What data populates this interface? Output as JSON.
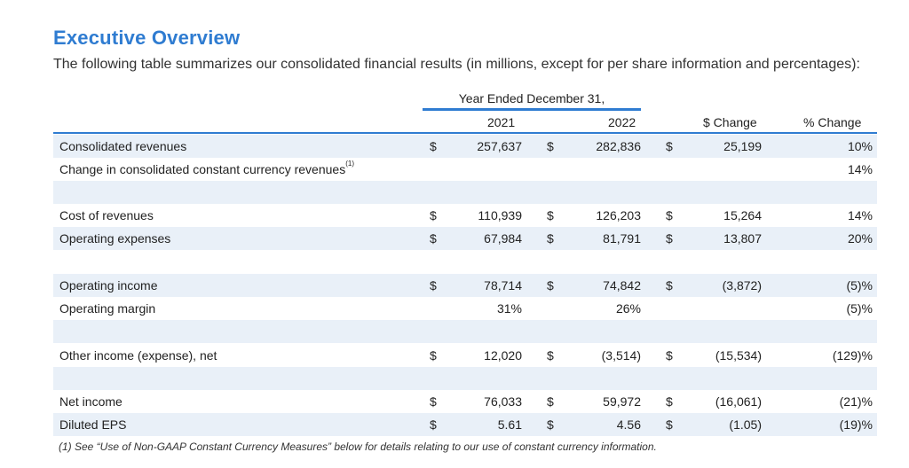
{
  "title": "Executive Overview",
  "intro": "The following table summarizes our consolidated financial results (in millions, except for per share information and percentages):",
  "header": {
    "period": "Year Ended December 31,",
    "col_2021": "2021",
    "col_2022": "2022",
    "col_change_dollar": "$ Change",
    "col_change_pct": "% Change"
  },
  "rows": [
    {
      "label": "Consolidated revenues",
      "d1": "$",
      "v2021": "257,637",
      "d2": "$",
      "v2022": "282,836",
      "d3": "$",
      "change": "25,199",
      "pct": "10%"
    },
    {
      "label": "Change in consolidated constant currency revenues",
      "sup": "(1)",
      "d1": "",
      "v2021": "",
      "d2": "",
      "v2022": "",
      "d3": "",
      "change": "",
      "pct": "14%"
    },
    {
      "label": "",
      "d1": "",
      "v2021": "",
      "d2": "",
      "v2022": "",
      "d3": "",
      "change": "",
      "pct": ""
    },
    {
      "label": "Cost of revenues",
      "d1": "$",
      "v2021": "110,939",
      "d2": "$",
      "v2022": "126,203",
      "d3": "$",
      "change": "15,264",
      "pct": "14%"
    },
    {
      "label": "Operating expenses",
      "d1": "$",
      "v2021": "67,984",
      "d2": "$",
      "v2022": "81,791",
      "d3": "$",
      "change": "13,807",
      "pct": "20%"
    },
    {
      "label": "",
      "d1": "",
      "v2021": "",
      "d2": "",
      "v2022": "",
      "d3": "",
      "change": "",
      "pct": ""
    },
    {
      "label": "Operating income",
      "d1": "$",
      "v2021": "78,714",
      "d2": "$",
      "v2022": "74,842",
      "d3": "$",
      "change": "(3,872)",
      "pct": "(5)%"
    },
    {
      "label": "Operating margin",
      "d1": "",
      "v2021": "31%",
      "d2": "",
      "v2022": "26%",
      "d3": "",
      "change": "",
      "pct": "(5)%"
    },
    {
      "label": "",
      "d1": "",
      "v2021": "",
      "d2": "",
      "v2022": "",
      "d3": "",
      "change": "",
      "pct": ""
    },
    {
      "label": "Other income (expense), net",
      "d1": "$",
      "v2021": "12,020",
      "d2": "$",
      "v2022": "(3,514)",
      "d3": "$",
      "change": "(15,534)",
      "pct": "(129)%"
    },
    {
      "label": "",
      "d1": "",
      "v2021": "",
      "d2": "",
      "v2022": "",
      "d3": "",
      "change": "",
      "pct": ""
    },
    {
      "label": "Net income",
      "d1": "$",
      "v2021": "76,033",
      "d2": "$",
      "v2022": "59,972",
      "d3": "$",
      "change": "(16,061)",
      "pct": "(21)%"
    },
    {
      "label": "Diluted EPS",
      "d1": "$",
      "v2021": "5.61",
      "d2": "$",
      "v2022": "4.56",
      "d3": "$",
      "change": "(1.05)",
      "pct": "(19)%"
    }
  ],
  "footnote": "(1)  See “Use of Non-GAAP Constant Currency Measures” below for details relating to our use of constant currency information."
}
